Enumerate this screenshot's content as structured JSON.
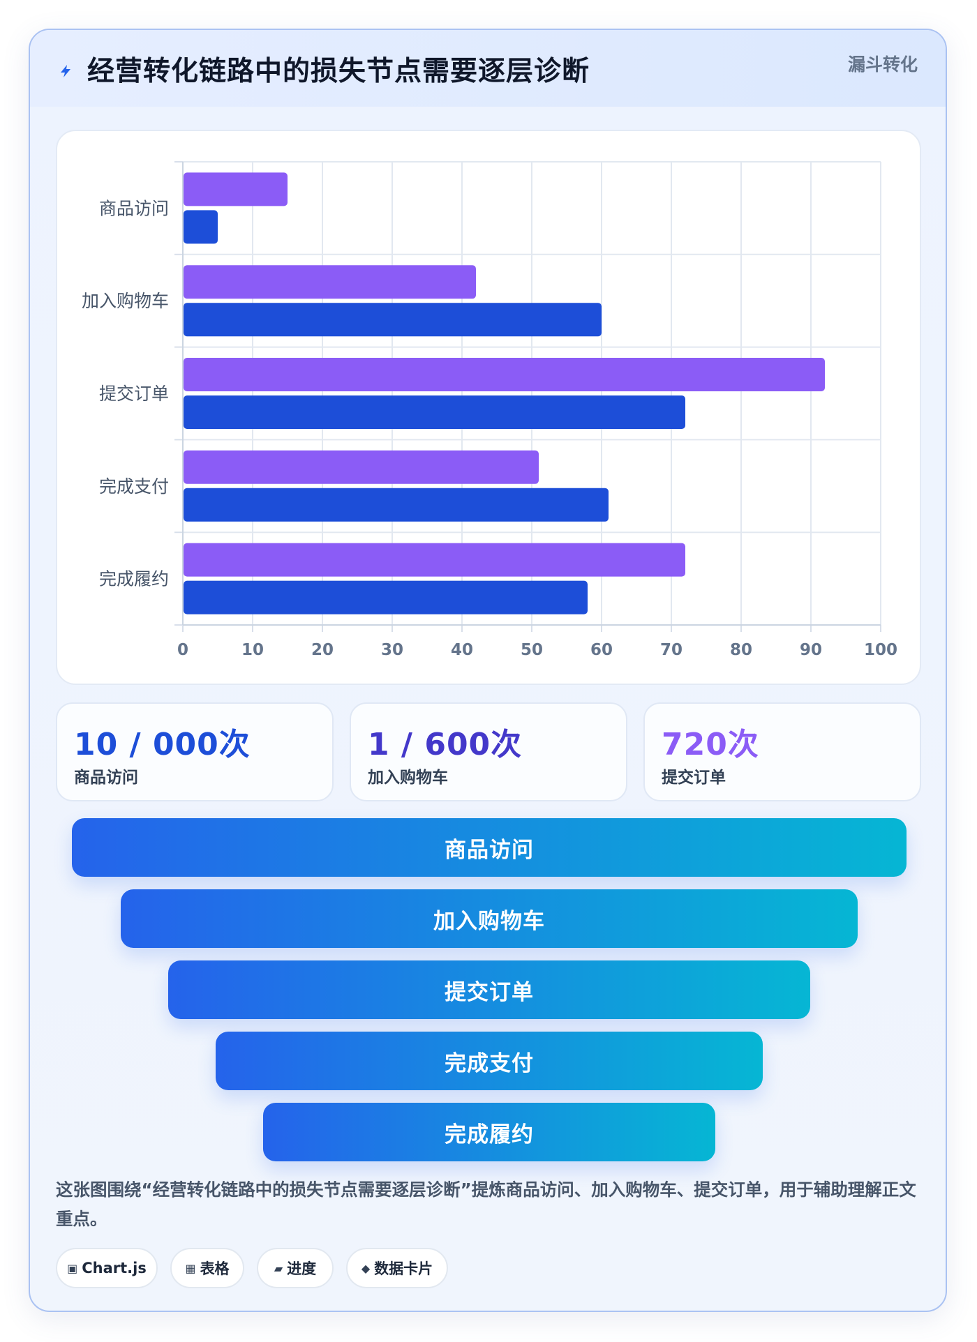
{
  "header": {
    "title": "经营转化链路中的损失节点需要逐层诊断",
    "tag": "漏斗转化",
    "icon": "lightning-icon"
  },
  "chart_data": {
    "type": "bar",
    "orientation": "horizontal",
    "categories": [
      "商品访问",
      "加入购物车",
      "提交订单",
      "完成支付",
      "完成履约"
    ],
    "series": [
      {
        "color": "#8b5cf6",
        "values": [
          15,
          42,
          92,
          51,
          72
        ]
      },
      {
        "color": "#1d4ed8",
        "values": [
          5,
          60,
          72,
          61,
          58
        ]
      }
    ],
    "xlim": [
      0,
      100
    ],
    "xticks": [
      0,
      10,
      20,
      30,
      40,
      50,
      60,
      70,
      80,
      90,
      100
    ],
    "grid": true
  },
  "kpis": [
    {
      "value": "10 / 000次",
      "label": "商品访问",
      "color": "#1d4ed8"
    },
    {
      "value": "1 / 600次",
      "label": "加入购物车",
      "color": "#4338ca"
    },
    {
      "value": "720次",
      "label": "提交订单",
      "color": "#8b5cf6"
    }
  ],
  "funnel": [
    "商品访问",
    "加入购物车",
    "提交订单",
    "完成支付",
    "完成履约"
  ],
  "description": "这张图围绕“经营转化链路中的损失节点需要逐层诊断”提炼商品访问、加入购物车、提交订单，用于辅助理解正文重点。",
  "pills": [
    {
      "icon": "▣",
      "label": "Chart.js"
    },
    {
      "icon": "▦",
      "label": "表格"
    },
    {
      "icon": "▰",
      "label": "进度"
    },
    {
      "icon": "◆",
      "label": "数据卡片"
    }
  ]
}
